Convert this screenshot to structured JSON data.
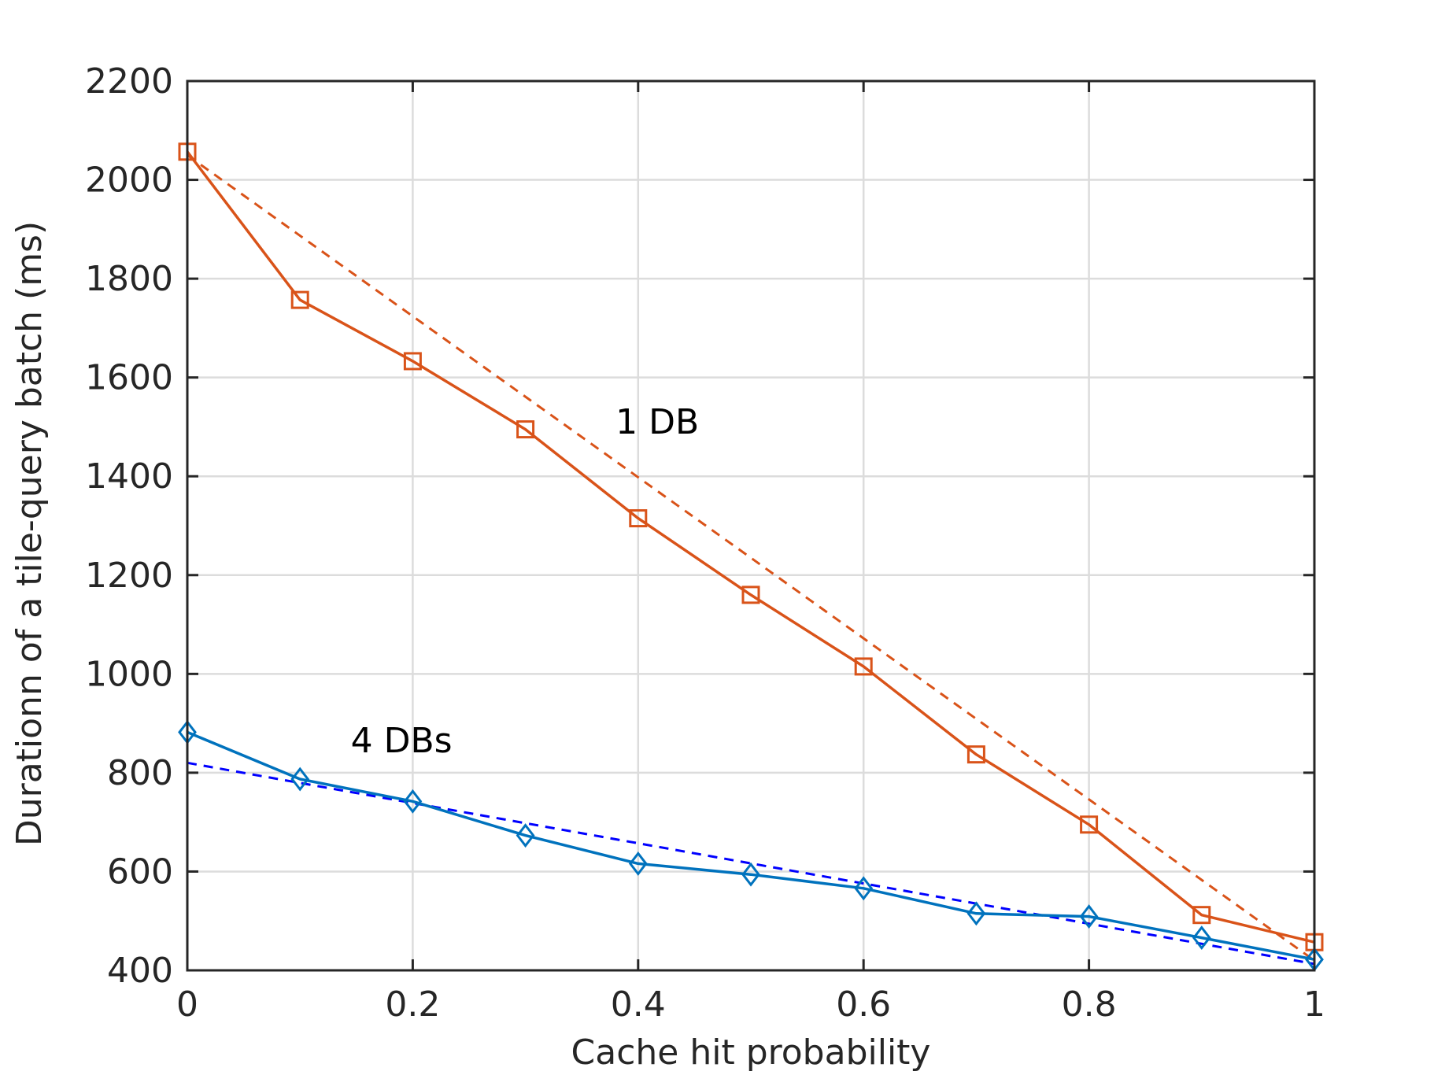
{
  "colors": {
    "series_1db": "#D95319",
    "series_4dbs": "#0072BD",
    "fit_4dbs": "#0000FF",
    "grid": "#DCDCDC",
    "axes": "#262626"
  },
  "chart_data": {
    "type": "line",
    "xlabel": "Cache hit probability",
    "ylabel": "Durationn of a tile-query batch (ms)",
    "xlim": [
      0,
      1
    ],
    "ylim": [
      400,
      2200
    ],
    "grid": true,
    "xticks": [
      0,
      0.2,
      0.4,
      0.6,
      0.8,
      1
    ],
    "xtick_labels": [
      "0",
      "0.2",
      "0.4",
      "0.6",
      "0.8",
      "1"
    ],
    "yticks": [
      400,
      600,
      800,
      1000,
      1200,
      1400,
      1600,
      1800,
      2000,
      2200
    ],
    "ytick_labels": [
      "400",
      "600",
      "800",
      "1000",
      "1200",
      "1400",
      "1600",
      "1800",
      "2000",
      "2200"
    ],
    "x": [
      0,
      0.1,
      0.2,
      0.3,
      0.4,
      0.5,
      0.6,
      0.7,
      0.8,
      0.9,
      1.0
    ],
    "series": [
      {
        "name": "1 DB",
        "marker": "square",
        "values": [
          2057,
          1757,
          1633,
          1495,
          1315,
          1160,
          1015,
          837,
          695,
          512,
          457
        ]
      },
      {
        "name": "4 DBs",
        "marker": "diamond",
        "values": [
          882,
          787,
          742,
          673,
          616,
          594,
          566,
          515,
          509,
          466,
          422
        ]
      }
    ],
    "fits": [
      {
        "name": "1 DB fit",
        "x": [
          0,
          1
        ],
        "values": [
          2050,
          420
        ]
      },
      {
        "name": "4 DBs fit",
        "x": [
          0,
          1
        ],
        "values": [
          820,
          413
        ]
      }
    ],
    "annotations": [
      {
        "text": "1 DB",
        "x": 0.38,
        "y": 1510
      },
      {
        "text": "4 DBs",
        "x": 0.145,
        "y": 865
      }
    ]
  }
}
